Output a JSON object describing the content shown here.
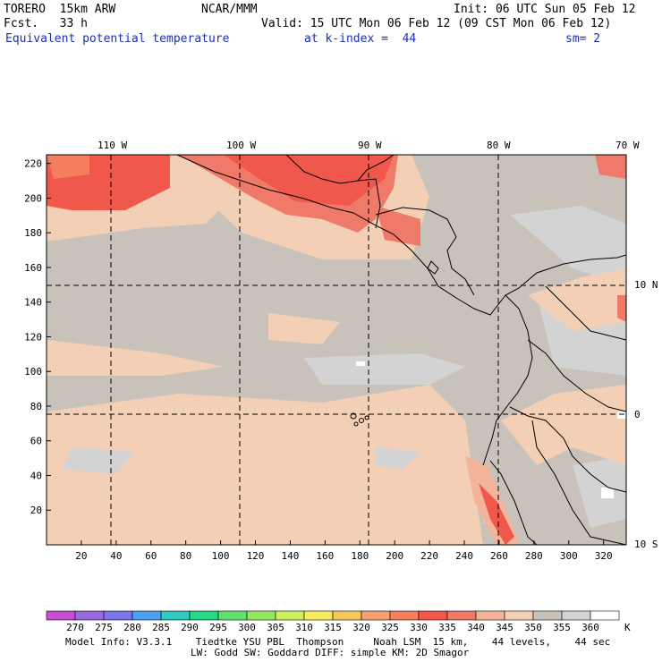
{
  "header": {
    "line1_left": "TORERO  15km ARW",
    "line1_mid": "NCAR/MMM",
    "line1_right": "Init: 06 UTC Sun 05 Feb 12",
    "line2_left": "Fcst.   33 h",
    "line2_right": "Valid: 15 UTC Mon 06 Feb 12 (09 CST Mon 06 Feb 12)",
    "line3_field": "Equivalent potential temperature",
    "line3_level": "at k-index =  44",
    "line3_smooth": "sm= 2"
  },
  "map": {
    "top_lon_labels": [
      "110 W",
      "100 W",
      "90 W",
      "80 W",
      "70 W"
    ],
    "right_lat_labels": [
      "10 N",
      "0",
      "10 S"
    ],
    "x_ticks": [
      "20",
      "40",
      "60",
      "80",
      "100",
      "120",
      "140",
      "160",
      "180",
      "200",
      "220",
      "240",
      "260",
      "280",
      "300",
      "320"
    ],
    "y_ticks": [
      "220",
      "200",
      "180",
      "160",
      "140",
      "120",
      "100",
      "80",
      "60",
      "40",
      "20"
    ],
    "x_range": [
      0,
      333
    ],
    "y_range": [
      0,
      225
    ]
  },
  "colorbar": {
    "unit": "K",
    "labels": [
      "270",
      "275",
      "280",
      "285",
      "290",
      "295",
      "300",
      "305",
      "310",
      "315",
      "320",
      "325",
      "330",
      "335",
      "340",
      "345",
      "350",
      "355",
      "360"
    ],
    "colors": [
      "#c74fd1",
      "#9a6be0",
      "#7c74e8",
      "#4f9ef2",
      "#2fc9c0",
      "#28d889",
      "#5fe06f",
      "#94e860",
      "#cdee60",
      "#f4ec5c",
      "#f4c75a",
      "#f5a070",
      "#f57e5c",
      "#f0584b",
      "#f07a6a",
      "#f4b49c",
      "#f3cfb6",
      "#c9c2bb",
      "#d3d3d3",
      "#ffffff"
    ]
  },
  "footer": {
    "line1": "Model Info: V3.3.1    Tiedtke YSU PBL  Thompson     Noah LSM  15 km,    44 levels,    44 sec",
    "line2": "LW: Godd SW: Goddard DIFF: simple KM: 2D Smagor"
  }
}
